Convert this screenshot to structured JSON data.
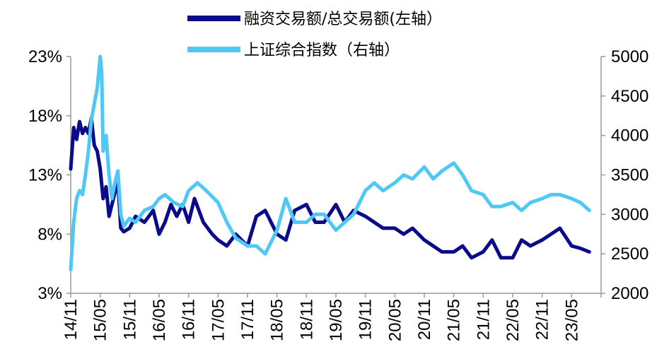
{
  "chart_data": {
    "type": "line",
    "legend": {
      "placement": "top-center",
      "entries": [
        "融资交易额/总交易额(左轴）",
        "上证综合指数（右轴）"
      ]
    },
    "x_tick_labels": [
      "14/11",
      "15/05",
      "15/11",
      "16/05",
      "16/11",
      "17/05",
      "17/11",
      "18/05",
      "18/11",
      "19/05",
      "19/11",
      "20/05",
      "20/11",
      "21/05",
      "21/11",
      "22/05",
      "22/11",
      "23/05"
    ],
    "y_left": {
      "ticks": [
        "3%",
        "8%",
        "13%",
        "18%",
        "23%"
      ],
      "range": [
        3,
        23
      ]
    },
    "y_right": {
      "ticks": [
        "2000",
        "2500",
        "3000",
        "3500",
        "4000",
        "4500",
        "5000"
      ],
      "range": [
        2000,
        5000
      ]
    },
    "series": [
      {
        "name": "融资交易额/总交易额(左轴）",
        "axis": "left",
        "color": "#0a0a8a",
        "x": [
          0,
          0.1,
          0.2,
          0.3,
          0.4,
          0.5,
          0.6,
          0.7,
          0.8,
          0.9,
          1.0,
          1.1,
          1.2,
          1.3,
          1.4,
          1.5,
          1.6,
          1.7,
          1.8,
          2.0,
          2.2,
          2.5,
          2.8,
          3.0,
          3.2,
          3.4,
          3.6,
          3.8,
          4.0,
          4.2,
          4.5,
          4.8,
          5.0,
          5.3,
          5.6,
          6.0,
          6.3,
          6.6,
          7.0,
          7.3,
          7.6,
          8.0,
          8.3,
          8.6,
          9.0,
          9.3,
          9.6,
          10.0,
          10.3,
          10.6,
          11.0,
          11.3,
          11.6,
          12.0,
          12.3,
          12.6,
          13.0,
          13.3,
          13.6,
          14.0,
          14.3,
          14.6,
          15.0,
          15.3,
          15.6,
          16.0,
          16.3,
          16.6,
          17.0,
          17.3,
          17.6
        ],
        "values": [
          13.5,
          17.0,
          16.0,
          17.5,
          16.5,
          17.0,
          16.5,
          17.8,
          15.5,
          15.0,
          13.5,
          11.0,
          12.0,
          9.5,
          10.5,
          11.5,
          12.5,
          8.5,
          8.2,
          8.5,
          9.5,
          9.0,
          10.0,
          8.0,
          9.0,
          10.5,
          9.5,
          10.5,
          9.0,
          11.0,
          9.0,
          8.0,
          7.5,
          7.0,
          8.0,
          7.0,
          9.5,
          10.0,
          8.0,
          7.5,
          10.0,
          10.5,
          9.0,
          9.0,
          10.5,
          9.0,
          10.0,
          9.5,
          9.0,
          8.5,
          8.5,
          8.0,
          8.5,
          7.5,
          7.0,
          6.5,
          6.5,
          7.0,
          6.0,
          6.5,
          7.5,
          6.0,
          6.0,
          7.5,
          7.0,
          7.5,
          8.0,
          8.5,
          7.0,
          6.8,
          6.5
        ]
      },
      {
        "name": "上证综合指数（右轴）",
        "axis": "right",
        "color": "#4fc8f5",
        "x": [
          0,
          0.1,
          0.2,
          0.3,
          0.4,
          0.5,
          0.6,
          0.7,
          0.8,
          0.9,
          1.0,
          1.05,
          1.1,
          1.2,
          1.3,
          1.4,
          1.5,
          1.6,
          1.7,
          1.8,
          2.0,
          2.2,
          2.5,
          2.8,
          3.0,
          3.2,
          3.5,
          3.8,
          4.0,
          4.3,
          4.6,
          5.0,
          5.3,
          5.6,
          6.0,
          6.3,
          6.6,
          7.0,
          7.3,
          7.6,
          8.0,
          8.3,
          8.6,
          9.0,
          9.3,
          9.6,
          10.0,
          10.3,
          10.6,
          11.0,
          11.3,
          11.6,
          12.0,
          12.3,
          12.6,
          13.0,
          13.3,
          13.6,
          14.0,
          14.3,
          14.6,
          15.0,
          15.3,
          15.6,
          16.0,
          16.3,
          16.6,
          17.0,
          17.3,
          17.6
        ],
        "values": [
          2300,
          2900,
          3200,
          3300,
          3250,
          3500,
          3800,
          4200,
          4400,
          4600,
          5000,
          4800,
          3800,
          4000,
          3500,
          3200,
          3400,
          3550,
          3000,
          2850,
          2950,
          2900,
          3050,
          3100,
          3200,
          3250,
          3150,
          3100,
          3300,
          3400,
          3300,
          3150,
          2900,
          2700,
          2600,
          2600,
          2500,
          2800,
          3200,
          2900,
          2900,
          3000,
          3000,
          2800,
          2900,
          3000,
          3300,
          3400,
          3300,
          3400,
          3500,
          3450,
          3600,
          3450,
          3550,
          3650,
          3500,
          3300,
          3250,
          3100,
          3100,
          3150,
          3050,
          3150,
          3200,
          3250,
          3250,
          3200,
          3150,
          3050
        ]
      }
    ]
  }
}
